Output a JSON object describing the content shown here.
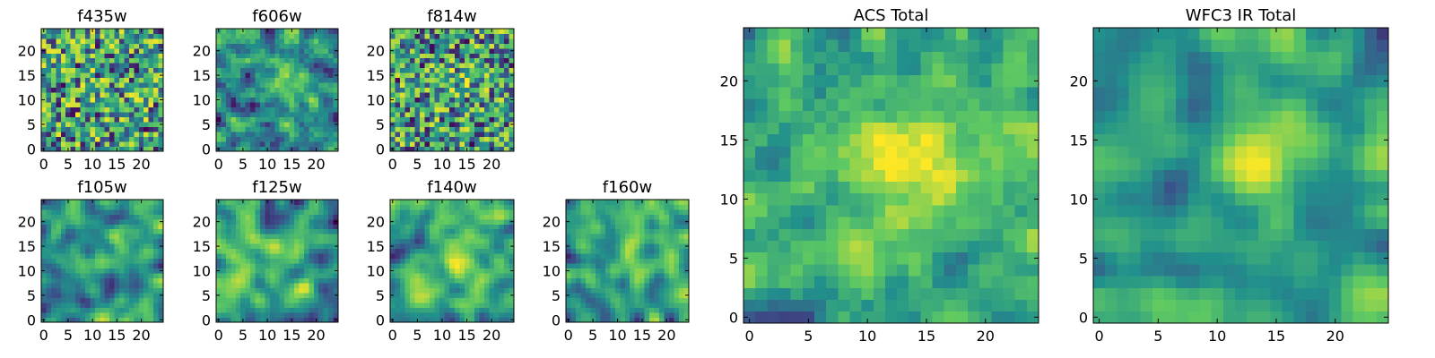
{
  "figure": {
    "description_visible": false
  },
  "colormap": {
    "name": "viridis",
    "stops": [
      "#440154",
      "#3b528b",
      "#21918c",
      "#5ec962",
      "#fde725"
    ]
  },
  "chart_data": [
    {
      "type": "heatmap",
      "title": "f435w",
      "grid_size": 25,
      "seed": 11,
      "smooth": 0,
      "bias": 0.0,
      "center_boost": 0.05,
      "xticks": [
        0,
        5,
        10,
        15,
        20
      ],
      "yticks": [
        0,
        5,
        10,
        15,
        20
      ],
      "xlim": [
        -0.5,
        24.5
      ],
      "ylim": [
        -0.5,
        24.5
      ]
    },
    {
      "type": "heatmap",
      "title": "f606w",
      "grid_size": 25,
      "seed": 23,
      "smooth": 1,
      "bias": 0.0,
      "center_boost": 0.35,
      "xticks": [
        0,
        5,
        10,
        15,
        20
      ],
      "yticks": [
        0,
        5,
        10,
        15,
        20
      ],
      "xlim": [
        -0.5,
        24.5
      ],
      "ylim": [
        -0.5,
        24.5
      ]
    },
    {
      "type": "heatmap",
      "title": "f814w",
      "grid_size": 25,
      "seed": 37,
      "smooth": 0,
      "bias": 0.0,
      "center_boost": 0.1,
      "xticks": [
        0,
        5,
        10,
        15,
        20
      ],
      "yticks": [
        0,
        5,
        10,
        15,
        20
      ],
      "xlim": [
        -0.5,
        24.5
      ],
      "ylim": [
        -0.5,
        24.5
      ]
    },
    {
      "type": "heatmap",
      "title": "f105w",
      "grid_size": 25,
      "seed": 41,
      "smooth": 2,
      "bias": 0.05,
      "center_boost": 0.25,
      "xticks": [
        0,
        5,
        10,
        15,
        20
      ],
      "yticks": [
        0,
        5,
        10,
        15,
        20
      ],
      "xlim": [
        -0.5,
        24.5
      ],
      "ylim": [
        -0.5,
        24.5
      ]
    },
    {
      "type": "heatmap",
      "title": "f125w",
      "grid_size": 25,
      "seed": 53,
      "smooth": 2,
      "bias": 0.0,
      "center_boost": 0.1,
      "xticks": [
        0,
        5,
        10,
        15,
        20
      ],
      "yticks": [
        0,
        5,
        10,
        15,
        20
      ],
      "xlim": [
        -0.5,
        24.5
      ],
      "ylim": [
        -0.5,
        24.5
      ]
    },
    {
      "type": "heatmap",
      "title": "f140w",
      "grid_size": 25,
      "seed": 67,
      "smooth": 2,
      "bias": 0.05,
      "center_boost": 0.3,
      "xticks": [
        0,
        5,
        10,
        15,
        20
      ],
      "yticks": [
        0,
        5,
        10,
        15,
        20
      ],
      "xlim": [
        -0.5,
        24.5
      ],
      "ylim": [
        -0.5,
        24.5
      ]
    },
    {
      "type": "heatmap",
      "title": "f160w",
      "grid_size": 25,
      "seed": 79,
      "smooth": 2,
      "bias": 0.05,
      "center_boost": 0.3,
      "xticks": [
        0,
        5,
        10,
        15,
        20
      ],
      "yticks": [
        0,
        5,
        10,
        15,
        20
      ],
      "xlim": [
        -0.5,
        24.5
      ],
      "ylim": [
        -0.5,
        24.5
      ]
    },
    {
      "type": "heatmap",
      "title": "ACS Total",
      "grid_size": 25,
      "seed": 97,
      "smooth": 1,
      "bias": 0.12,
      "center_boost": 0.45,
      "xticks": [
        0,
        5,
        10,
        15,
        20
      ],
      "yticks": [
        0,
        5,
        10,
        15,
        20
      ],
      "xlim": [
        -0.5,
        24.5
      ],
      "ylim": [
        -0.5,
        24.5
      ]
    },
    {
      "type": "heatmap",
      "title": "WFC3 IR Total",
      "grid_size": 25,
      "seed": 103,
      "smooth": 2,
      "bias": 0.1,
      "center_boost": 0.5,
      "xticks": [
        0,
        5,
        10,
        15,
        20
      ],
      "yticks": [
        0,
        5,
        10,
        15,
        20
      ],
      "xlim": [
        -0.5,
        24.5
      ],
      "ylim": [
        -0.5,
        24.5
      ]
    }
  ]
}
